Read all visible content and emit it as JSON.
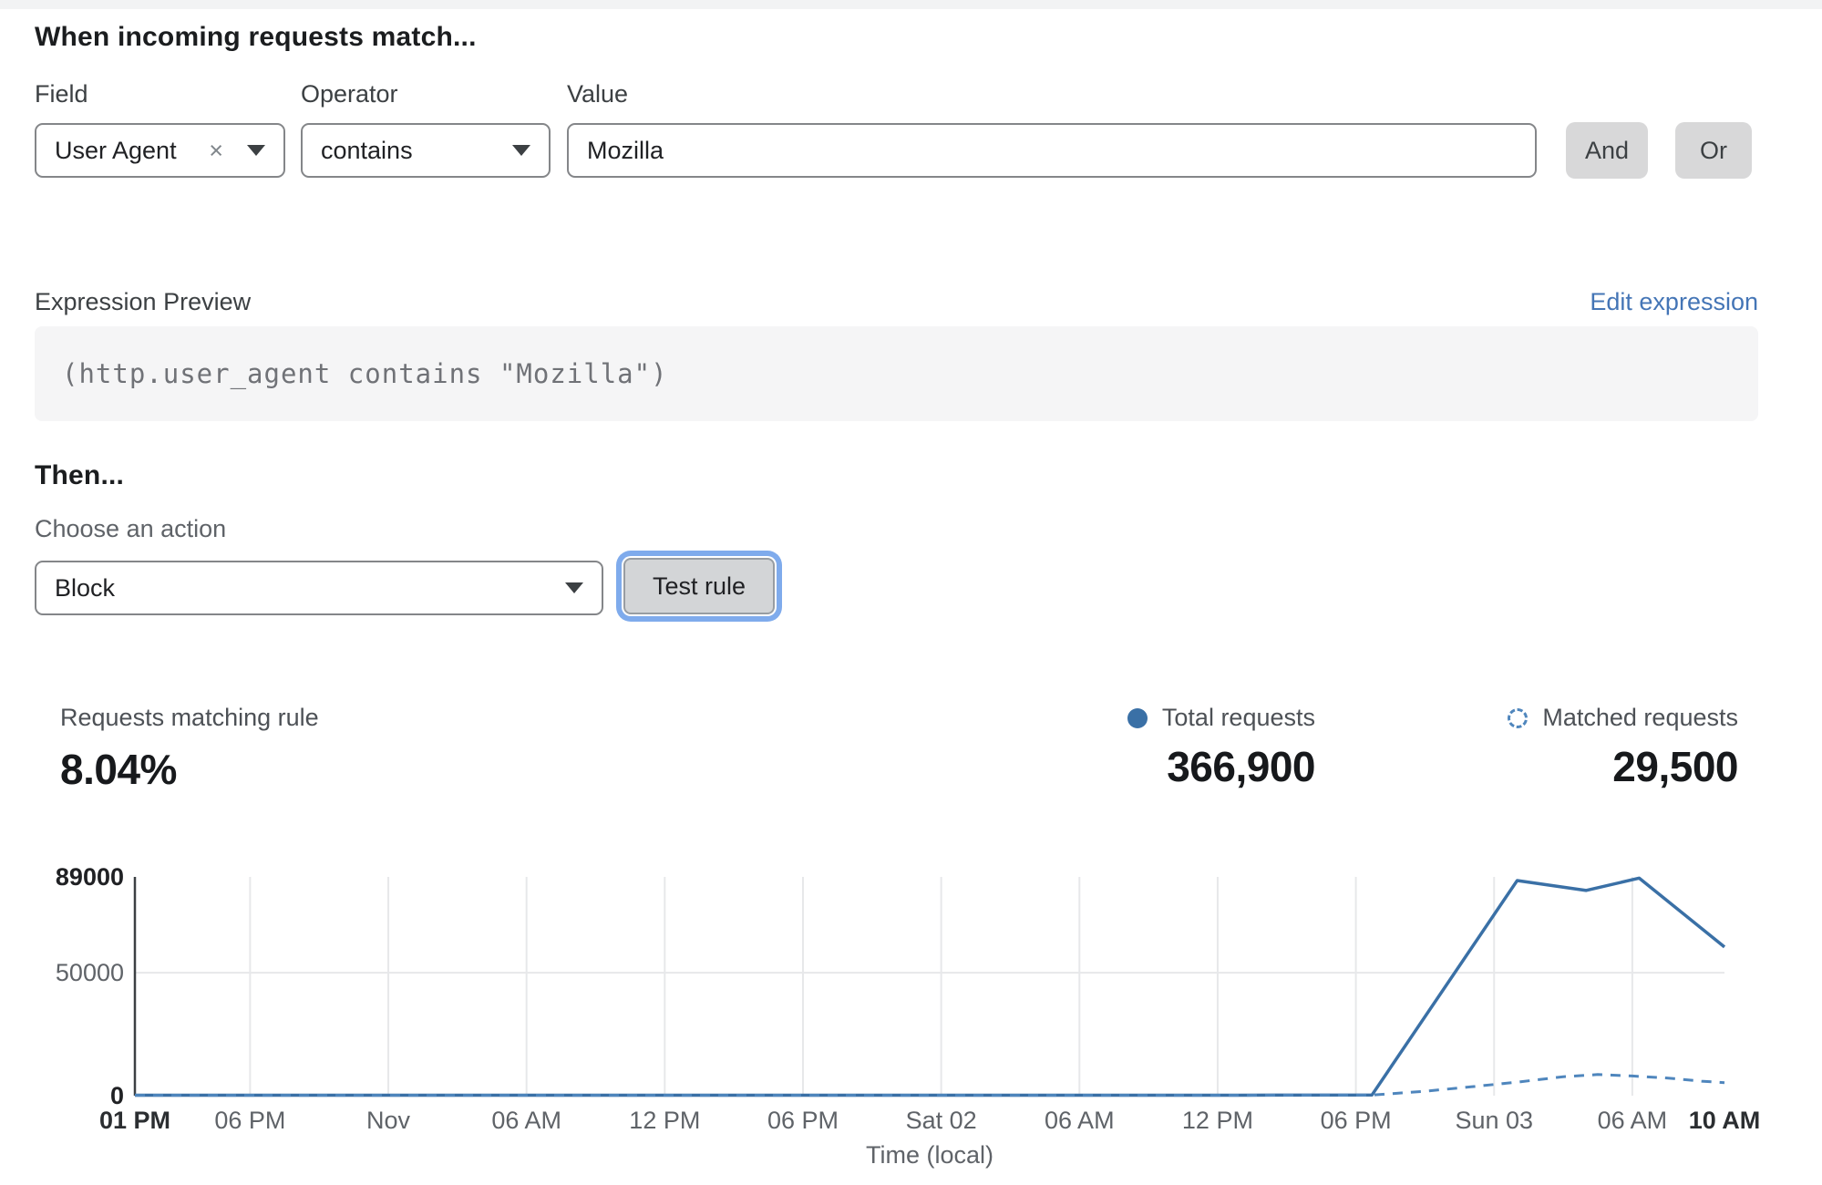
{
  "page": {
    "heading": "When incoming requests match..."
  },
  "rule_builder": {
    "field": {
      "label": "Field",
      "value": "User Agent",
      "remove_icon": "×"
    },
    "operator": {
      "label": "Operator",
      "value": "contains"
    },
    "value": {
      "label": "Value",
      "value": "Mozilla"
    },
    "and_label": "And",
    "or_label": "Or"
  },
  "expression": {
    "label": "Expression Preview",
    "edit_link": "Edit expression",
    "code": "(http.user_agent contains \"Mozilla\")"
  },
  "action": {
    "heading": "Then...",
    "label": "Choose an action",
    "value": "Block",
    "test_button": "Test rule"
  },
  "stats": {
    "matching": {
      "label": "Requests matching rule",
      "value": "8.04%"
    },
    "total": {
      "label": "Total requests",
      "value": "366,900"
    },
    "matched": {
      "label": "Matched requests",
      "value": "29,500"
    }
  },
  "colors": {
    "line_total": "#3a70a6",
    "line_matched": "#4f86bd",
    "link_blue": "#4475b6",
    "focus_ring": "#7fabec",
    "grid": "#e7e8ea",
    "axis": "#3c4043"
  },
  "chart_data": {
    "type": "line",
    "xlabel": "Time (local)",
    "ylabel": "",
    "ylim": [
      0,
      89000
    ],
    "x_domain_hours": [
      0,
      69
    ],
    "grid": true,
    "legend_position": "above-right",
    "yticks": [
      {
        "value": 89000,
        "label": "89000",
        "bold": true
      },
      {
        "value": 50000,
        "label": "50000",
        "bold": false
      },
      {
        "value": 0,
        "label": "0",
        "bold": true
      }
    ],
    "xticks": [
      {
        "h": 0,
        "label": "01 PM",
        "bold": true
      },
      {
        "h": 5,
        "label": "06 PM",
        "bold": false
      },
      {
        "h": 11,
        "label": "Nov",
        "bold": false
      },
      {
        "h": 17,
        "label": "06 AM",
        "bold": false
      },
      {
        "h": 23,
        "label": "12 PM",
        "bold": false
      },
      {
        "h": 29,
        "label": "06 PM",
        "bold": false
      },
      {
        "h": 35,
        "label": "Sat 02",
        "bold": false
      },
      {
        "h": 41,
        "label": "06 AM",
        "bold": false
      },
      {
        "h": 47,
        "label": "12 PM",
        "bold": false
      },
      {
        "h": 53,
        "label": "06 PM",
        "bold": false
      },
      {
        "h": 59,
        "label": "Sun 03",
        "bold": false
      },
      {
        "h": 65,
        "label": "06 AM",
        "bold": false
      },
      {
        "h": 69,
        "label": "10 AM",
        "bold": true
      }
    ],
    "series": [
      {
        "name": "Total requests",
        "style": "solid",
        "points": [
          [
            0,
            200
          ],
          [
            6,
            200
          ],
          [
            12,
            200
          ],
          [
            18,
            200
          ],
          [
            24,
            200
          ],
          [
            30,
            200
          ],
          [
            36,
            200
          ],
          [
            42,
            200
          ],
          [
            48,
            200
          ],
          [
            53.7,
            300
          ],
          [
            60,
            87500
          ],
          [
            63,
            83500
          ],
          [
            65.3,
            88500
          ],
          [
            69,
            60500
          ]
        ]
      },
      {
        "name": "Matched requests",
        "style": "dashed",
        "points": [
          [
            0,
            150
          ],
          [
            12,
            150
          ],
          [
            24,
            150
          ],
          [
            36,
            150
          ],
          [
            48,
            150
          ],
          [
            53.7,
            250
          ],
          [
            56,
            1800
          ],
          [
            58,
            3600
          ],
          [
            60,
            5500
          ],
          [
            62,
            7700
          ],
          [
            63.5,
            8600
          ],
          [
            65,
            8000
          ],
          [
            66.5,
            7200
          ],
          [
            68,
            5900
          ],
          [
            69,
            5300
          ]
        ]
      }
    ]
  }
}
